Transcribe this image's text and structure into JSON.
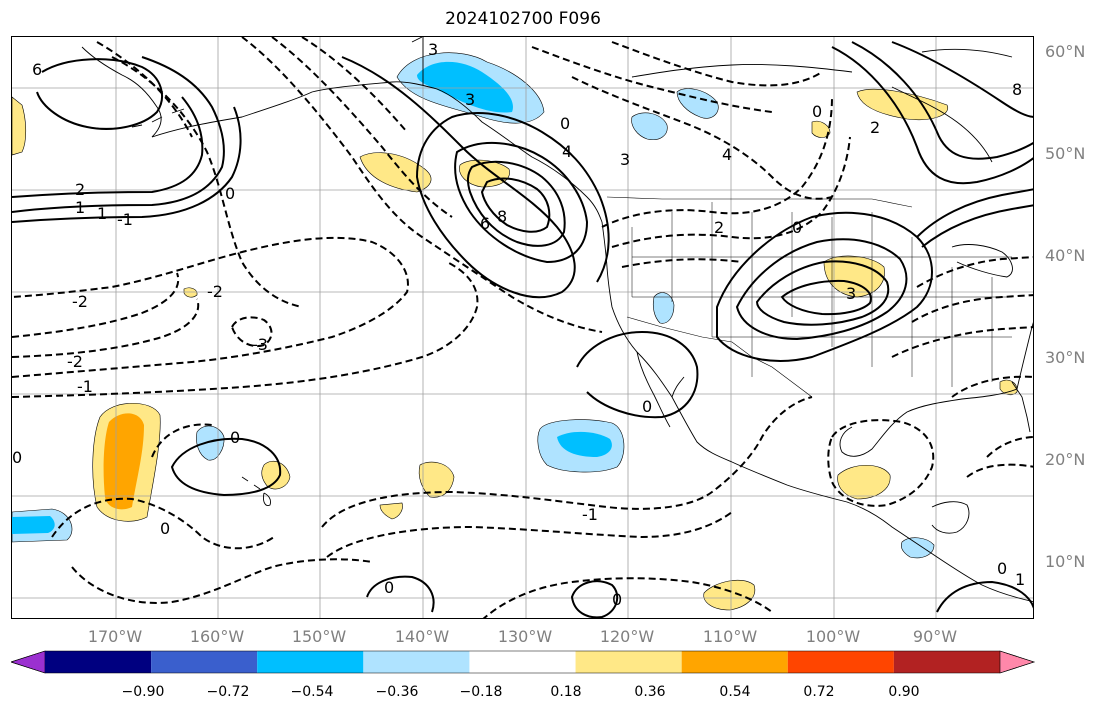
{
  "title": "2024102700 F096",
  "lat_labels": [
    "60°N",
    "50°N",
    "40°N",
    "30°N",
    "20°N",
    "10°N"
  ],
  "lon_labels": [
    "170°W",
    "160°W",
    "150°W",
    "140°W",
    "130°W",
    "120°W",
    "110°W",
    "100°W",
    "90°W"
  ],
  "colorbar": {
    "tick_labels": [
      "−0.90",
      "−0.72",
      "−0.54",
      "−0.36",
      "−0.18",
      "0.18",
      "0.36",
      "0.54",
      "0.72",
      "0.90"
    ],
    "colors": [
      "#9b30d0",
      "#000080",
      "#3a5fcd",
      "#00bfff",
      "#afe3ff",
      "#ffffff",
      "#ffe887",
      "#ffa500",
      "#ff4500",
      "#b22222",
      "#ff88aa"
    ]
  },
  "contour_labels": [
    "-1",
    "-2",
    "-3",
    "0",
    "1",
    "2",
    "3",
    "4",
    "6",
    "8"
  ]
}
